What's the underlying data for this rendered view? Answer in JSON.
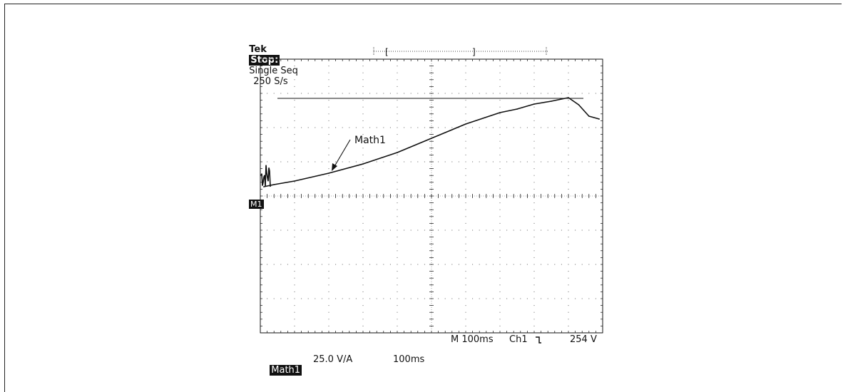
{
  "header": {
    "brand": "Tek",
    "mode": "Stop:",
    "acquisition": "Single Seq",
    "sample_rate": "250 S/s"
  },
  "scope": {
    "math_marker": "M1",
    "timebase_readout": "M 100ms",
    "trigger_source": "Ch1",
    "trigger_slope_icon": "falling-edge-icon",
    "trigger_level": "254 V"
  },
  "footer": {
    "math_label": "Math1",
    "math_scale": "25.0 V/A",
    "math_time": "100ms"
  },
  "chart_data": {
    "type": "line",
    "annotations": [
      {
        "text": "Math1",
        "points_to": "trace"
      }
    ],
    "grid": true,
    "divisions": {
      "x": 10,
      "y": 8
    },
    "xlim": [
      0,
      1000
    ],
    "x_unit": "ms",
    "reference_line_y": 137,
    "series": [
      {
        "name": "Math1",
        "x": [
          10,
          40,
          100,
          200,
          300,
          400,
          500,
          600,
          700,
          750,
          800,
          850,
          900,
          930,
          960,
          990
        ],
        "y": [
          13,
          16,
          21,
          32,
          45,
          61,
          81,
          101,
          117,
          122,
          129,
          133,
          138,
          128,
          112,
          108
        ]
      }
    ],
    "noise_x_range": [
      0,
      30
    ],
    "noise_y_range": [
      10,
      48
    ]
  },
  "colors": {
    "trace": "#111111",
    "grid": "#666666",
    "background": "#ffffff"
  }
}
